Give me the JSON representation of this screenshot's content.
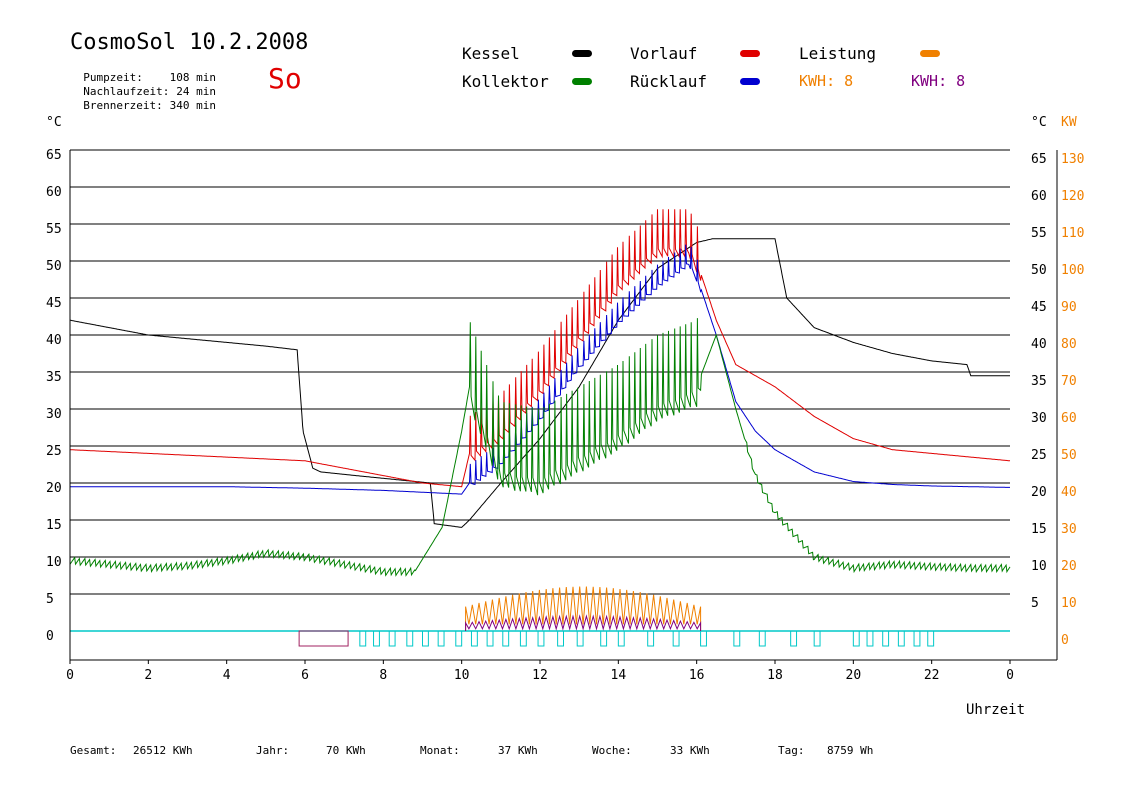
{
  "header": {
    "title": "CosmoSol 10.2.2008",
    "day": "So",
    "stats": [
      {
        "label": "Pumpzeit:",
        "value": "108 min"
      },
      {
        "label": "Nachlaufzeit:",
        "value": "24 min"
      },
      {
        "label": "Brennerzeit:",
        "value": "340 min"
      }
    ]
  },
  "legend": [
    {
      "name": "Kessel",
      "color": "#000000"
    },
    {
      "name": "Kollektor",
      "color": "#008000"
    },
    {
      "name": "Vorlauf",
      "color": "#e00000"
    },
    {
      "name": "Rücklauf",
      "color": "#0000d0"
    },
    {
      "name": "Leistung",
      "color": "#f08000"
    }
  ],
  "kwh": [
    {
      "text": "KWH: 8",
      "color": "#f08000"
    },
    {
      "text": "KWH: 8",
      "color": "#800080"
    }
  ],
  "footer": [
    {
      "label": "Gesamt:",
      "value": "26512 KWh"
    },
    {
      "label": "Jahr:",
      "value": "70 KWh"
    },
    {
      "label": "Monat:",
      "value": "37 KWh"
    },
    {
      "label": "Woche:",
      "value": "33 KWh"
    },
    {
      "label": "Tag:",
      "value": "8759 Wh"
    }
  ],
  "chart_data": {
    "type": "line",
    "xlabel": "Uhrzeit",
    "ylabel_left": "°C",
    "ylabel_right_temp": "°C",
    "ylabel_right_power": "KW",
    "xlim": [
      0,
      24
    ],
    "ylim": [
      0,
      65
    ],
    "x_ticks": [
      "0",
      "2",
      "4",
      "6",
      "8",
      "10",
      "12",
      "14",
      "16",
      "18",
      "20",
      "22",
      "0"
    ],
    "y_ticks_left": [
      "65",
      "60",
      "55",
      "50",
      "45",
      "40",
      "35",
      "30",
      "25",
      "20",
      "15",
      "10",
      "5",
      "0"
    ],
    "y_ticks_right_temp": [
      "65",
      "60",
      "55",
      "50",
      "45",
      "40",
      "35",
      "30",
      "25",
      "20",
      "15",
      "10",
      "5"
    ],
    "y_ticks_right_kw": [
      "130",
      "120",
      "110",
      "100",
      "90",
      "80",
      "70",
      "60",
      "50",
      "40",
      "30",
      "20",
      "10",
      "0"
    ],
    "grid": true,
    "series": [
      {
        "name": "Kessel",
        "color": "#000000",
        "x": [
          0,
          1,
          2,
          3,
          4,
          5,
          5.8,
          5.95,
          6.2,
          6.4,
          7.3,
          9.2,
          9.3,
          10,
          10.2,
          11,
          12,
          13,
          14,
          15,
          16,
          16.4,
          18,
          18.3,
          19,
          20,
          21,
          22,
          22.9,
          23,
          24
        ],
        "y": [
          42,
          41,
          40,
          39.5,
          39,
          38.5,
          38,
          27,
          22,
          21.5,
          21,
          20,
          14.5,
          14,
          15,
          20,
          26,
          33,
          42,
          49,
          52.5,
          53,
          53,
          45,
          41,
          39,
          37.5,
          36.5,
          36,
          34.5,
          34.5
        ]
      },
      {
        "name": "Vorlauf",
        "color": "#e00000",
        "x": [
          0,
          2,
          4,
          6,
          7,
          8,
          9,
          10,
          10.2,
          11,
          12,
          13,
          14,
          15,
          15.8,
          16,
          16.5,
          17,
          18,
          19,
          20,
          21,
          22,
          23,
          24
        ],
        "y": [
          24.5,
          24,
          23.5,
          23,
          22,
          21,
          20,
          19.5,
          24,
          27,
          33,
          40,
          47,
          52,
          52,
          50,
          42,
          36,
          33,
          29,
          26,
          24.5,
          24,
          23.5,
          23
        ]
      },
      {
        "name": "Rücklauf",
        "color": "#0000d0",
        "x": [
          0,
          2,
          4,
          6,
          8,
          10,
          10.2,
          11,
          12,
          13,
          14,
          15,
          15.8,
          16,
          16.5,
          17,
          17.5,
          18,
          19,
          20,
          21,
          22,
          23,
          24
        ],
        "y": [
          19.5,
          19.5,
          19.5,
          19.3,
          19,
          18.5,
          20,
          23,
          29,
          36,
          42,
          47,
          50,
          48,
          40,
          31,
          27,
          24.5,
          21.5,
          20.2,
          19.8,
          19.6,
          19.5,
          19.4
        ]
      },
      {
        "name": "Kollektor",
        "color": "#008000",
        "x": [
          0,
          1,
          2,
          3,
          4,
          5,
          6,
          7,
          8,
          8.8,
          9.5,
          10,
          10.2,
          11,
          12,
          13,
          14,
          15,
          16,
          16.5,
          17,
          17.5,
          18,
          18.5,
          19,
          20,
          21,
          22,
          23,
          24
        ],
        "y": [
          9.5,
          9,
          8.5,
          8.8,
          9.5,
          10.5,
          10,
          9,
          8,
          8,
          14,
          27,
          33,
          22,
          21,
          24,
          27,
          31,
          33,
          40,
          30,
          21,
          16,
          13,
          10,
          8.5,
          9,
          8.7,
          8.5,
          8.5
        ]
      }
    ],
    "power_series": [
      {
        "name": "Leistung",
        "color": "#f08000",
        "x_range": [
          10.1,
          16.1
        ],
        "peak_kw": 12
      },
      {
        "name": "KWH",
        "color": "#800080",
        "x_range": [
          10.1,
          16.1
        ],
        "peak_kw": 4
      }
    ],
    "pump_bar_color": "#00c8c8",
    "pump_blocks": [
      [
        5.85,
        7.1
      ],
      [
        7.4,
        7.55
      ],
      [
        7.75,
        7.9
      ],
      [
        8.15,
        8.3
      ],
      [
        8.6,
        8.75
      ],
      [
        9.0,
        9.15
      ],
      [
        9.4,
        9.55
      ],
      [
        9.85,
        10.0
      ],
      [
        10.25,
        10.4
      ],
      [
        10.65,
        10.8
      ],
      [
        11.05,
        11.2
      ],
      [
        11.5,
        11.65
      ],
      [
        11.95,
        12.1
      ],
      [
        12.45,
        12.6
      ],
      [
        12.95,
        13.1
      ],
      [
        13.55,
        13.7
      ],
      [
        14.0,
        14.15
      ],
      [
        14.75,
        14.9
      ],
      [
        15.4,
        15.55
      ],
      [
        16.1,
        16.25
      ],
      [
        16.95,
        17.1
      ],
      [
        17.6,
        17.75
      ],
      [
        18.4,
        18.55
      ],
      [
        19.0,
        19.15
      ],
      [
        20.0,
        20.15
      ],
      [
        20.35,
        20.5
      ],
      [
        20.75,
        20.9
      ],
      [
        21.15,
        21.3
      ],
      [
        21.55,
        21.7
      ],
      [
        21.9,
        22.05
      ]
    ]
  }
}
